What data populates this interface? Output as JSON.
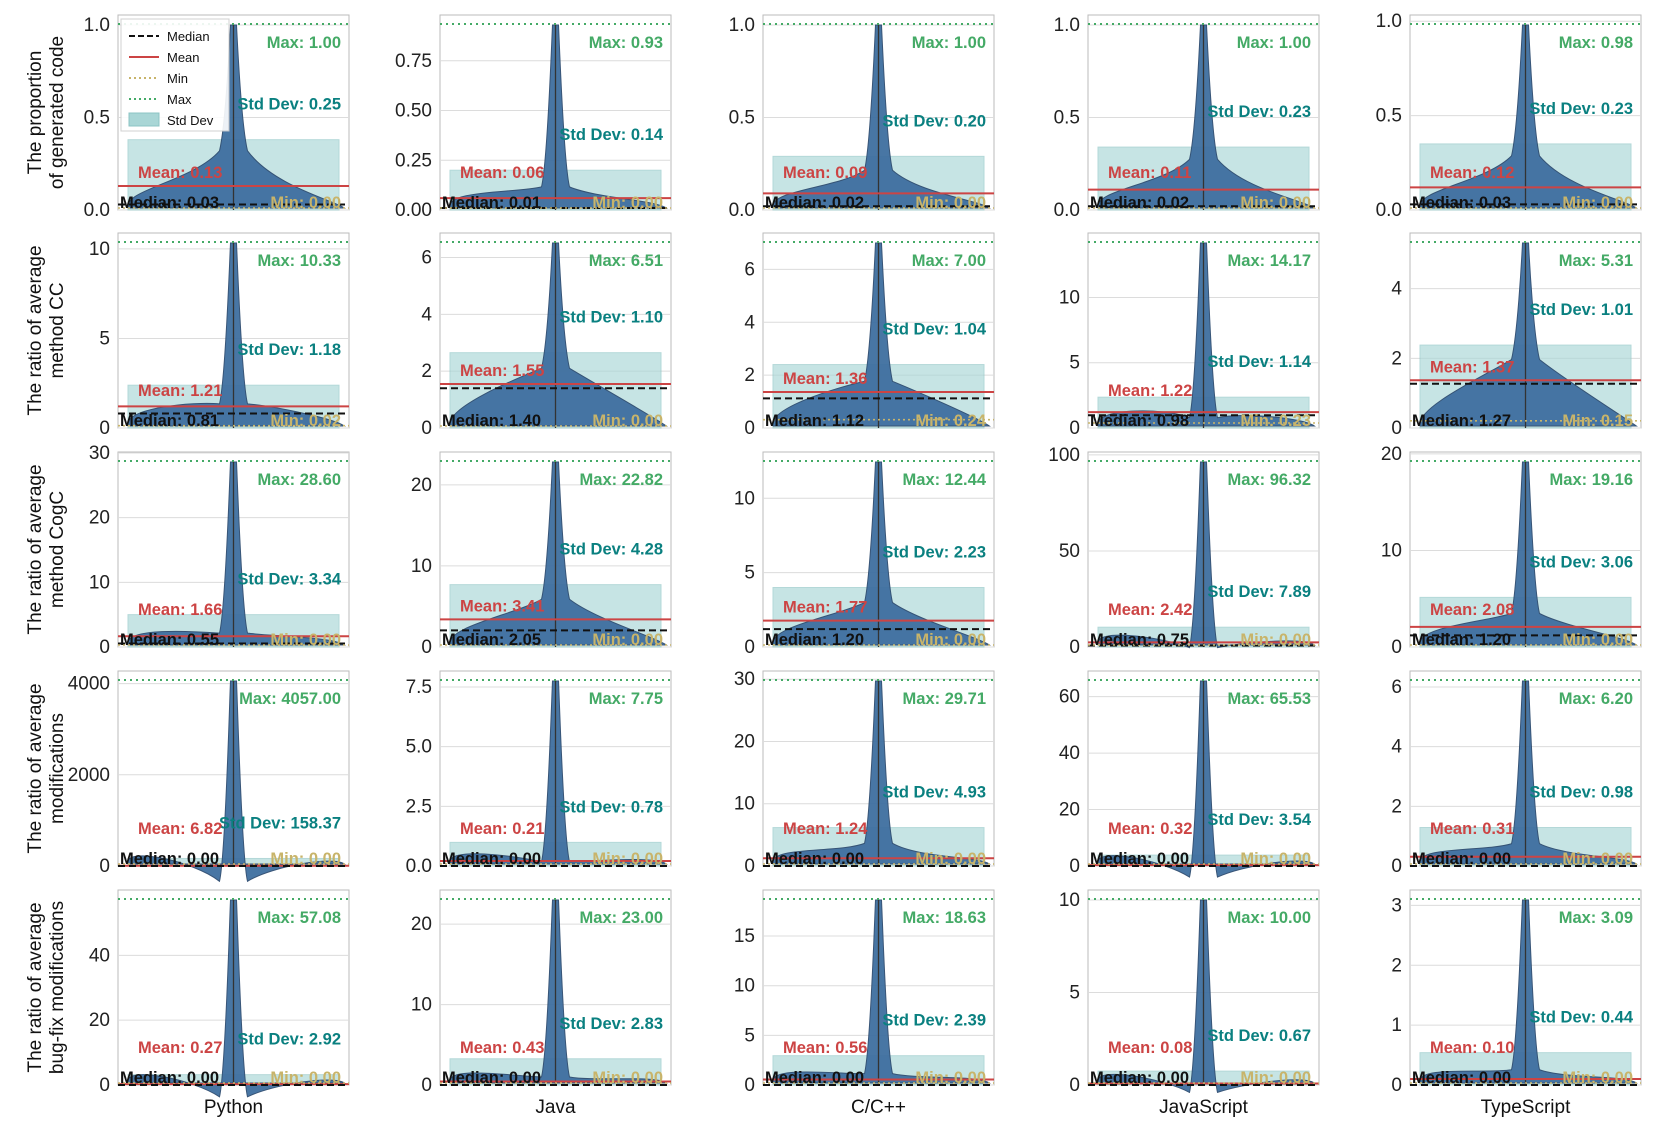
{
  "colors": {
    "violin": "#3f6fa0",
    "violin_edge": "#2e4c70",
    "std_band": "#a9d6d6",
    "median": "#111111",
    "mean": "#cc4444",
    "min": "#c8b46a",
    "max": "#44aa66",
    "std_text": "#0a8080",
    "grid": "#dcdcdc",
    "frame": "#bbbbbb"
  },
  "legend": {
    "items": [
      {
        "label": "Median",
        "style": "median"
      },
      {
        "label": "Mean",
        "style": "mean"
      },
      {
        "label": "Min",
        "style": "min"
      },
      {
        "label": "Max",
        "style": "max"
      },
      {
        "label": "Std Dev",
        "style": "std"
      }
    ],
    "placement": "top-left of first panel"
  },
  "chart_data": {
    "type": "violin",
    "languages": [
      "Python",
      "Java",
      "C/C++",
      "JavaScript",
      "TypeScript"
    ],
    "rows": [
      {
        "ylabel": [
          "The proportion",
          "of generated code"
        ],
        "panels": [
          {
            "ylim": [
              0,
              1.0
            ],
            "ticks": [
              0.0,
              0.5,
              1.0
            ],
            "tick_labels": [
              "0.0",
              "0.5",
              "1.0"
            ],
            "median": 0.03,
            "mean": 0.13,
            "min": 0.0,
            "max": 1.0,
            "std": 0.25,
            "median_label": "Median: 0.03",
            "mean_label": "Mean: 0.13",
            "min_label": "Min: 0.00",
            "max_label": "Max: 1.00",
            "std_label": "Std Dev: 0.25"
          },
          {
            "ylim": [
              0,
              0.93
            ],
            "ticks": [
              0.0,
              0.25,
              0.5,
              0.75
            ],
            "tick_labels": [
              "0.00",
              "0.25",
              "0.50",
              "0.75"
            ],
            "median": 0.01,
            "mean": 0.06,
            "min": 0.0,
            "max": 0.93,
            "std": 0.14,
            "median_label": "Median: 0.01",
            "mean_label": "Mean: 0.06",
            "min_label": "Min: 0.00",
            "max_label": "Max: 0.93",
            "std_label": "Std Dev: 0.14"
          },
          {
            "ylim": [
              0,
              1.0
            ],
            "ticks": [
              0.0,
              0.5,
              1.0
            ],
            "tick_labels": [
              "0.0",
              "0.5",
              "1.0"
            ],
            "median": 0.02,
            "mean": 0.09,
            "min": 0.0,
            "max": 1.0,
            "std": 0.2,
            "median_label": "Median: 0.02",
            "mean_label": "Mean: 0.09",
            "min_label": "Min: 0.00",
            "max_label": "Max: 1.00",
            "std_label": "Std Dev: 0.20"
          },
          {
            "ylim": [
              0,
              1.0
            ],
            "ticks": [
              0.0,
              0.5,
              1.0
            ],
            "tick_labels": [
              "0.0",
              "0.5",
              "1.0"
            ],
            "median": 0.02,
            "mean": 0.11,
            "min": 0.0,
            "max": 1.0,
            "std": 0.23,
            "median_label": "Median: 0.02",
            "mean_label": "Mean: 0.11",
            "min_label": "Min: 0.00",
            "max_label": "Max: 1.00",
            "std_label": "Std Dev: 0.23"
          },
          {
            "ylim": [
              0,
              0.98
            ],
            "ticks": [
              0.0,
              0.5,
              1.0
            ],
            "tick_labels": [
              "0.0",
              "0.5",
              "1.0"
            ],
            "median": 0.03,
            "mean": 0.12,
            "min": 0.0,
            "max": 0.98,
            "std": 0.23,
            "median_label": "Median: 0.03",
            "mean_label": "Mean: 0.12",
            "min_label": "Min: 0.00",
            "max_label": "Max: 0.98",
            "std_label": "Std Dev: 0.23"
          }
        ]
      },
      {
        "ylabel": [
          "The ratio of average",
          "method CC"
        ],
        "panels": [
          {
            "ylim": [
              0,
              10.33
            ],
            "ticks": [
              0,
              5,
              10
            ],
            "tick_labels": [
              "0",
              "5",
              "10"
            ],
            "median": 0.81,
            "mean": 1.21,
            "min": 0.02,
            "max": 10.33,
            "std": 1.18,
            "median_label": "Median: 0.81",
            "mean_label": "Mean: 1.21",
            "min_label": "Min: 0.02",
            "max_label": "Max: 10.33",
            "std_label": "Std Dev: 1.18"
          },
          {
            "ylim": [
              0,
              6.51
            ],
            "ticks": [
              0,
              2,
              4,
              6
            ],
            "tick_labels": [
              "0",
              "2",
              "4",
              "6"
            ],
            "median": 1.4,
            "mean": 1.55,
            "min": 0.0,
            "max": 6.51,
            "std": 1.1,
            "median_label": "Median: 1.40",
            "mean_label": "Mean: 1.55",
            "min_label": "Min: 0.00",
            "max_label": "Max: 6.51",
            "std_label": "Std Dev: 1.10"
          },
          {
            "ylim": [
              0,
              7.0
            ],
            "ticks": [
              0,
              2,
              4,
              6
            ],
            "tick_labels": [
              "0",
              "2",
              "4",
              "6"
            ],
            "median": 1.12,
            "mean": 1.36,
            "min": 0.24,
            "max": 7.0,
            "std": 1.04,
            "median_label": "Median: 1.12",
            "mean_label": "Mean: 1.36",
            "min_label": "Min: 0.24",
            "max_label": "Max: 7.00",
            "std_label": "Std Dev: 1.04"
          },
          {
            "ylim": [
              0,
              14.17
            ],
            "ticks": [
              0,
              5,
              10
            ],
            "tick_labels": [
              "0",
              "5",
              "10"
            ],
            "median": 0.98,
            "mean": 1.22,
            "min": 0.23,
            "max": 14.17,
            "std": 1.14,
            "median_label": "Median: 0.98",
            "mean_label": "Mean: 1.22",
            "min_label": "Min: 0.23",
            "max_label": "Max: 14.17",
            "std_label": "Std Dev: 1.14"
          },
          {
            "ylim": [
              0,
              5.31
            ],
            "ticks": [
              0,
              2,
              4
            ],
            "tick_labels": [
              "0",
              "2",
              "4"
            ],
            "median": 1.27,
            "mean": 1.37,
            "min": 0.15,
            "max": 5.31,
            "std": 1.01,
            "median_label": "Median: 1.27",
            "mean_label": "Mean: 1.37",
            "min_label": "Min: 0.15",
            "max_label": "Max: 5.31",
            "std_label": "Std Dev: 1.01"
          }
        ]
      },
      {
        "ylabel": [
          "The ratio of average",
          "method CogC"
        ],
        "panels": [
          {
            "ylim": [
              0,
              28.6
            ],
            "ticks": [
              0,
              10,
              20,
              30
            ],
            "tick_labels": [
              "0",
              "10",
              "20",
              "30"
            ],
            "median": 0.55,
            "mean": 1.66,
            "min": 0.0,
            "max": 28.6,
            "std": 3.34,
            "median_label": "Median: 0.55",
            "mean_label": "Mean: 1.66",
            "min_label": "Min: 0.00",
            "max_label": "Max: 28.60",
            "std_label": "Std Dev: 3.34"
          },
          {
            "ylim": [
              0,
              22.82
            ],
            "ticks": [
              0,
              10,
              20
            ],
            "tick_labels": [
              "0",
              "10",
              "20"
            ],
            "median": 2.05,
            "mean": 3.41,
            "min": 0.0,
            "max": 22.82,
            "std": 4.28,
            "median_label": "Median: 2.05",
            "mean_label": "Mean: 3.41",
            "min_label": "Min: 0.00",
            "max_label": "Max: 22.82",
            "std_label": "Std Dev: 4.28"
          },
          {
            "ylim": [
              0,
              12.44
            ],
            "ticks": [
              0,
              5,
              10
            ],
            "tick_labels": [
              "0",
              "5",
              "10"
            ],
            "median": 1.2,
            "mean": 1.77,
            "min": 0.0,
            "max": 12.44,
            "std": 2.23,
            "median_label": "Median: 1.20",
            "mean_label": "Mean: 1.77",
            "min_label": "Min: 0.00",
            "max_label": "Max: 12.44",
            "std_label": "Std Dev: 2.23"
          },
          {
            "ylim": [
              0,
              96.32
            ],
            "ticks": [
              0,
              50,
              100
            ],
            "tick_labels": [
              "0",
              "50",
              "100"
            ],
            "median": 0.75,
            "mean": 2.42,
            "min": 0.0,
            "max": 96.32,
            "std": 7.89,
            "median_label": "Median: 0.75",
            "mean_label": "Mean: 2.42",
            "min_label": "Min: 0.00",
            "max_label": "Max: 96.32",
            "std_label": "Std Dev: 7.89"
          },
          {
            "ylim": [
              0,
              19.16
            ],
            "ticks": [
              0,
              10,
              20
            ],
            "tick_labels": [
              "0",
              "10",
              "20"
            ],
            "median": 1.2,
            "mean": 2.08,
            "min": 0.0,
            "max": 19.16,
            "std": 3.06,
            "median_label": "Median: 1.20",
            "mean_label": "Mean: 2.08",
            "min_label": "Min: 0.00",
            "max_label": "Max: 19.16",
            "std_label": "Std Dev: 3.06"
          }
        ]
      },
      {
        "ylabel": [
          "The ratio of average",
          "modifications"
        ],
        "panels": [
          {
            "ylim": [
              0,
              4057
            ],
            "ticks": [
              0,
              2000,
              4000
            ],
            "tick_labels": [
              "0",
              "2000",
              "4000"
            ],
            "median": 0.0,
            "mean": 6.82,
            "min": 0.0,
            "max": 4057.0,
            "std": 158.37,
            "median_label": "Median: 0.00",
            "mean_label": "Mean: 6.82",
            "min_label": "Min: 0.00",
            "max_label": "Max: 4057.00",
            "std_label": "Std Dev: 158.37"
          },
          {
            "ylim": [
              0,
              7.75
            ],
            "ticks": [
              0,
              2.5,
              5,
              7.5
            ],
            "tick_labels": [
              "0.0",
              "2.5",
              "5.0",
              "7.5"
            ],
            "median": 0.0,
            "mean": 0.21,
            "min": 0.0,
            "max": 7.75,
            "std": 0.78,
            "median_label": "Median: 0.00",
            "mean_label": "Mean: 0.21",
            "min_label": "Min: 0.00",
            "max_label": "Max: 7.75",
            "std_label": "Std Dev: 0.78"
          },
          {
            "ylim": [
              0,
              29.71
            ],
            "ticks": [
              0,
              10,
              20,
              30
            ],
            "tick_labels": [
              "0",
              "10",
              "20",
              "30"
            ],
            "median": 0.0,
            "mean": 1.24,
            "min": 0.0,
            "max": 29.71,
            "std": 4.93,
            "median_label": "Median: 0.00",
            "mean_label": "Mean: 1.24",
            "min_label": "Min: 0.00",
            "max_label": "Max: 29.71",
            "std_label": "Std Dev: 4.93"
          },
          {
            "ylim": [
              0,
              65.53
            ],
            "ticks": [
              0,
              20,
              40,
              60
            ],
            "tick_labels": [
              "0",
              "20",
              "40",
              "60"
            ],
            "median": 0.0,
            "mean": 0.32,
            "min": 0.0,
            "max": 65.53,
            "std": 3.54,
            "median_label": "Median: 0.00",
            "mean_label": "Mean: 0.32",
            "min_label": "Min: 0.00",
            "max_label": "Max: 65.53",
            "std_label": "Std Dev: 3.54"
          },
          {
            "ylim": [
              0,
              6.2
            ],
            "ticks": [
              0,
              2,
              4,
              6
            ],
            "tick_labels": [
              "0",
              "2",
              "4",
              "6"
            ],
            "median": 0.0,
            "mean": 0.31,
            "min": 0.0,
            "max": 6.2,
            "std": 0.98,
            "median_label": "Median: 0.00",
            "mean_label": "Mean: 0.31",
            "min_label": "Min: 0.00",
            "max_label": "Max: 6.20",
            "std_label": "Std Dev: 0.98"
          }
        ]
      },
      {
        "ylabel": [
          "The ratio of average",
          "bug-fix modifications"
        ],
        "panels": [
          {
            "ylim": [
              0,
              57.08
            ],
            "ticks": [
              0,
              20,
              40
            ],
            "tick_labels": [
              "0",
              "20",
              "40"
            ],
            "median": 0.0,
            "mean": 0.27,
            "min": 0.0,
            "max": 57.08,
            "std": 2.92,
            "median_label": "Median: 0.00",
            "mean_label": "Mean: 0.27",
            "min_label": "Min: 0.00",
            "max_label": "Max: 57.08",
            "std_label": "Std Dev: 2.92"
          },
          {
            "ylim": [
              0,
              23.0
            ],
            "ticks": [
              0,
              10,
              20
            ],
            "tick_labels": [
              "0",
              "10",
              "20"
            ],
            "median": 0.0,
            "mean": 0.43,
            "min": 0.0,
            "max": 23.0,
            "std": 2.83,
            "median_label": "Median: 0.00",
            "mean_label": "Mean: 0.43",
            "min_label": "Min: 0.00",
            "max_label": "Max: 23.00",
            "std_label": "Std Dev: 2.83"
          },
          {
            "ylim": [
              0,
              18.63
            ],
            "ticks": [
              0,
              5,
              10,
              15
            ],
            "tick_labels": [
              "0",
              "5",
              "10",
              "15"
            ],
            "median": 0.0,
            "mean": 0.56,
            "min": 0.0,
            "max": 18.63,
            "std": 2.39,
            "median_label": "Median: 0.00",
            "mean_label": "Mean: 0.56",
            "min_label": "Min: 0.00",
            "max_label": "Max: 18.63",
            "std_label": "Std Dev: 2.39"
          },
          {
            "ylim": [
              0,
              10.0
            ],
            "ticks": [
              0,
              5,
              10
            ],
            "tick_labels": [
              "0",
              "5",
              "10"
            ],
            "median": 0.0,
            "mean": 0.08,
            "min": 0.0,
            "max": 10.0,
            "std": 0.67,
            "median_label": "Median: 0.00",
            "mean_label": "Mean: 0.08",
            "min_label": "Min: 0.00",
            "max_label": "Max: 10.00",
            "std_label": "Std Dev: 0.67"
          },
          {
            "ylim": [
              0,
              3.09
            ],
            "ticks": [
              0,
              1,
              2,
              3
            ],
            "tick_labels": [
              "0",
              "1",
              "2",
              "3"
            ],
            "median": 0.0,
            "mean": 0.1,
            "min": 0.0,
            "max": 3.09,
            "std": 0.44,
            "median_label": "Median: 0.00",
            "mean_label": "Mean: 0.10",
            "min_label": "Min: 0.00",
            "max_label": "Max: 3.09",
            "std_label": "Std Dev: 0.44"
          }
        ]
      }
    ]
  }
}
